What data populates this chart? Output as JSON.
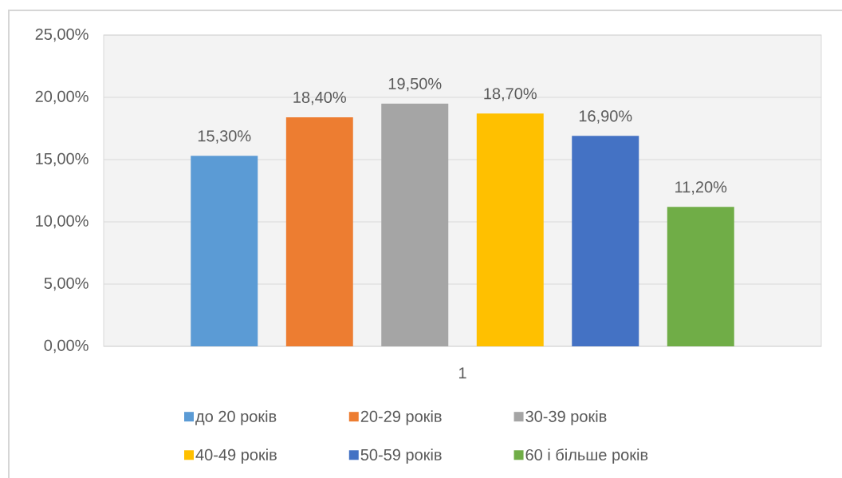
{
  "chart_data": {
    "type": "bar",
    "categories": [
      "1"
    ],
    "series": [
      {
        "name": "до 20 років",
        "color": "#5b9bd5",
        "values": [
          15.3
        ],
        "value_labels": [
          "15,30%"
        ]
      },
      {
        "name": "20-29 років",
        "color": "#ed7d31",
        "values": [
          18.4
        ],
        "value_labels": [
          "18,40%"
        ]
      },
      {
        "name": "30-39 років",
        "color": "#a5a5a5",
        "values": [
          19.5
        ],
        "value_labels": [
          "19,50%"
        ]
      },
      {
        "name": "40-49 років",
        "color": "#ffc000",
        "values": [
          18.7
        ],
        "value_labels": [
          "18,70%"
        ]
      },
      {
        "name": "50-59 років",
        "color": "#4472c4",
        "values": [
          16.9
        ],
        "value_labels": [
          "16,90%"
        ]
      },
      {
        "name": "60 і більше років",
        "color": "#70ad47",
        "values": [
          11.2
        ],
        "value_labels": [
          "11,20%"
        ]
      }
    ],
    "ylim": [
      0,
      25
    ],
    "yticks": [
      {
        "value": 0,
        "label": "0,00%"
      },
      {
        "value": 5,
        "label": "5,00%"
      },
      {
        "value": 10,
        "label": "10,00%"
      },
      {
        "value": 15,
        "label": "15,00%"
      },
      {
        "value": 20,
        "label": "20,00%"
      },
      {
        "value": 25,
        "label": "25,00%"
      }
    ],
    "grid": "y",
    "legend": "bottom"
  }
}
